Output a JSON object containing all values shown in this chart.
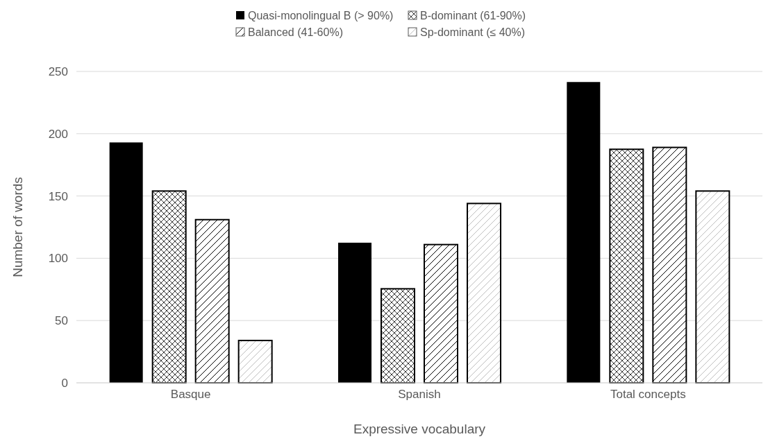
{
  "chart_data": {
    "type": "bar",
    "xlabel": "Expressive vocabulary",
    "ylabel": "Number of words",
    "categories": [
      "Basque",
      "Spanish",
      "Total concepts"
    ],
    "series": [
      {
        "name": "Quasi-monolingual B (> 90%)",
        "color": "#000000",
        "values": [
          193,
          112.5,
          241.5
        ]
      },
      {
        "name": "B-dominant (61-90%)",
        "color": "#000000",
        "values": [
          154,
          75.5,
          187.5
        ]
      },
      {
        "name": "Balanced (41-60%)",
        "color": "#000000",
        "values": [
          131,
          111,
          189
        ]
      },
      {
        "name": "Sp-dominant (≤ 40%)",
        "color": "#000000",
        "values": [
          34,
          144,
          154
        ]
      }
    ],
    "ylim": [
      0,
      250
    ],
    "yticks": [
      0,
      50,
      100,
      150,
      200,
      250
    ],
    "grid": "y",
    "legend": "top"
  }
}
